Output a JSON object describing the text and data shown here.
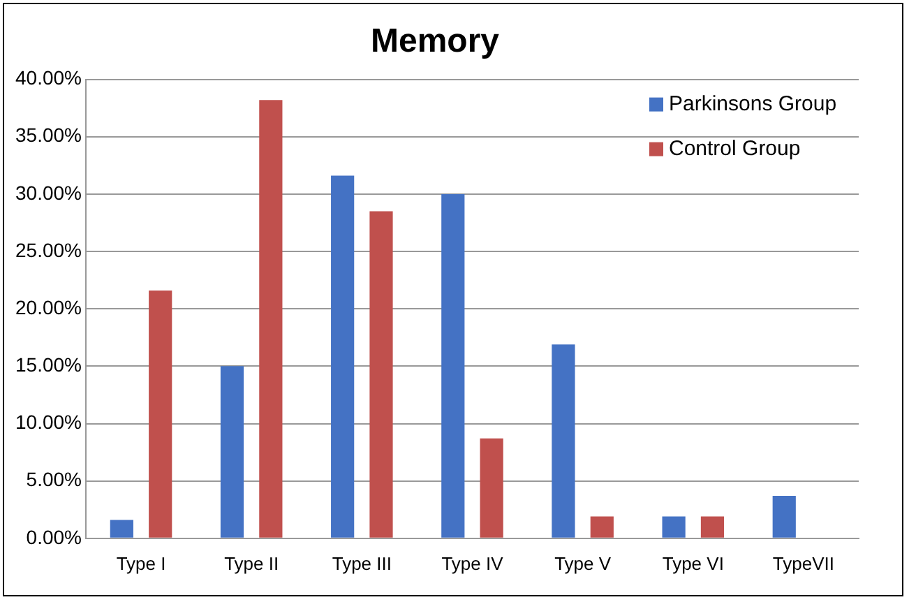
{
  "chart_data": {
    "type": "bar",
    "title": "Memory",
    "categories": [
      "Type I",
      "Type II",
      "Type III",
      "Type IV",
      "Type V",
      "Type VI",
      "TypeVII"
    ],
    "series": [
      {
        "name": "Parkinsons Group",
        "color": "#4472c4",
        "values": [
          1.6,
          15.0,
          31.6,
          30.0,
          16.9,
          1.9,
          3.7
        ]
      },
      {
        "name": "Control Group",
        "color": "#c0504d",
        "values": [
          21.6,
          38.2,
          28.5,
          8.7,
          1.9,
          1.9,
          0
        ]
      }
    ],
    "ylim": [
      0,
      40
    ],
    "yticks": [
      {
        "value": 0,
        "label": "0.00%"
      },
      {
        "value": 5,
        "label": "5.00%"
      },
      {
        "value": 10,
        "label": "10.00%"
      },
      {
        "value": 15,
        "label": "15.00%"
      },
      {
        "value": 20,
        "label": "20.00%"
      },
      {
        "value": 25,
        "label": "25.00%"
      },
      {
        "value": 30,
        "label": "30.00%"
      },
      {
        "value": 35,
        "label": "35.00%"
      },
      {
        "value": 40,
        "label": "40.00%"
      }
    ],
    "grid": "y",
    "legend": "top right"
  }
}
